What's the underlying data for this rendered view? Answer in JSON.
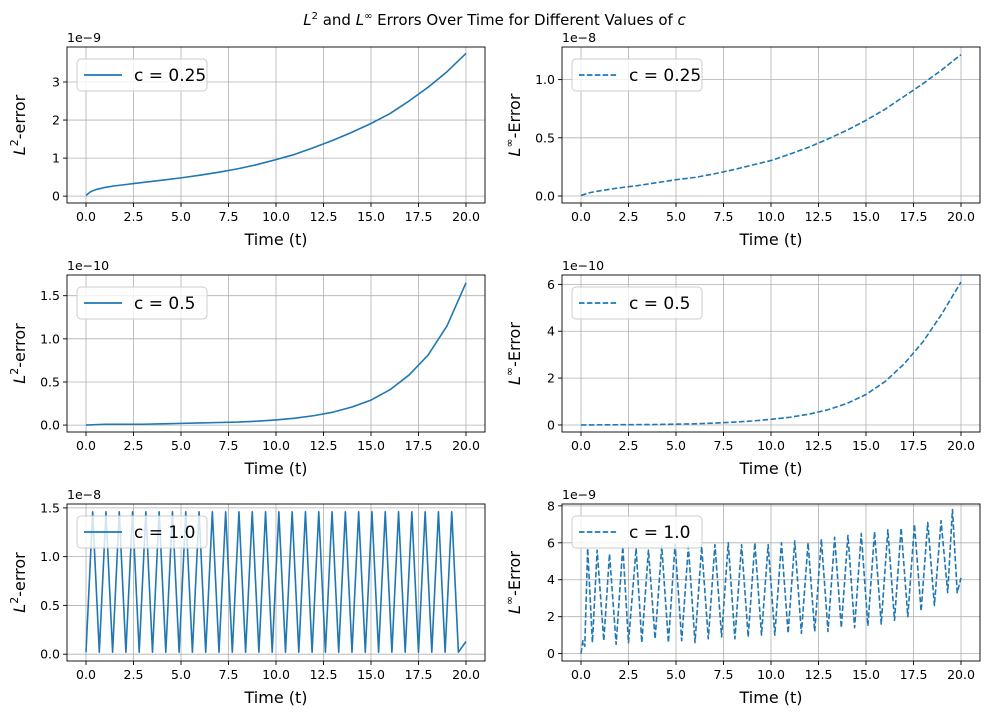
{
  "figure": {
    "title_parts": [
      "L",
      "2",
      " and ",
      "L",
      "∞",
      " Errors Over Time for Different Values of ",
      "c"
    ]
  },
  "colors": {
    "line": "#1f77b4",
    "grid": "#b0b0b0",
    "axis": "#000000",
    "legend_border": "#cccccc"
  },
  "chart_data": [
    {
      "type": "line",
      "panel": "row1-left",
      "xlabel": "Time (t)",
      "ylabel_base": "L",
      "ylabel_sup": "2",
      "ylabel_rest": "-error",
      "offset_text": "1e−9",
      "linestyle": "solid",
      "xlim": [
        -1.0,
        21.0
      ],
      "ylim": [
        -0.18,
        3.92
      ],
      "xticks": [
        0,
        2.5,
        5,
        7.5,
        10,
        12.5,
        15,
        17.5,
        20
      ],
      "xtick_labels": [
        "0.0",
        "2.5",
        "5.0",
        "7.5",
        "10.0",
        "12.5",
        "15.0",
        "17.5",
        "20.0"
      ],
      "yticks": [
        0,
        1,
        2,
        3
      ],
      "ytick_labels": [
        "0",
        "1",
        "2",
        "3"
      ],
      "legend": "upper left",
      "grid": true,
      "series": [
        {
          "name": "c = 0.25",
          "x": [
            0,
            0.25,
            0.5,
            1,
            1.5,
            2,
            2.5,
            3,
            4,
            5,
            6,
            7,
            8,
            9,
            10,
            11,
            12,
            13,
            14,
            15,
            16,
            17,
            18,
            19,
            20
          ],
          "y": [
            0.02,
            0.12,
            0.17,
            0.23,
            0.27,
            0.3,
            0.33,
            0.36,
            0.42,
            0.48,
            0.55,
            0.63,
            0.72,
            0.83,
            0.96,
            1.1,
            1.28,
            1.47,
            1.68,
            1.91,
            2.17,
            2.5,
            2.86,
            3.27,
            3.75
          ]
        }
      ]
    },
    {
      "type": "line",
      "panel": "row1-right",
      "xlabel": "Time (t)",
      "ylabel_base": "L",
      "ylabel_sup": "∞",
      "ylabel_rest": "-Error",
      "offset_text": "1e−8",
      "linestyle": "dashed",
      "xlim": [
        -1.0,
        21.0
      ],
      "ylim": [
        -0.06,
        1.28
      ],
      "xticks": [
        0,
        2.5,
        5,
        7.5,
        10,
        12.5,
        15,
        17.5,
        20
      ],
      "xtick_labels": [
        "0.0",
        "2.5",
        "5.0",
        "7.5",
        "10.0",
        "12.5",
        "15.0",
        "17.5",
        "20.0"
      ],
      "yticks": [
        0,
        0.5,
        1.0
      ],
      "ytick_labels": [
        "0.0",
        "0.5",
        "1.0"
      ],
      "legend": "upper left",
      "grid": true,
      "series": [
        {
          "name": "c = 0.25",
          "x": [
            0,
            0.5,
            1,
            2,
            3,
            4,
            5,
            6,
            7,
            8,
            9,
            10,
            11,
            12,
            13,
            14,
            15,
            16,
            17,
            18,
            19,
            20
          ],
          "y": [
            0.005,
            0.03,
            0.045,
            0.07,
            0.09,
            0.115,
            0.14,
            0.16,
            0.19,
            0.225,
            0.265,
            0.305,
            0.36,
            0.42,
            0.49,
            0.565,
            0.65,
            0.745,
            0.855,
            0.965,
            1.085,
            1.215
          ]
        }
      ]
    },
    {
      "type": "line",
      "panel": "row2-left",
      "xlabel": "Time (t)",
      "ylabel_base": "L",
      "ylabel_sup": "2",
      "ylabel_rest": "-error",
      "offset_text": "1e−10",
      "linestyle": "solid",
      "xlim": [
        -1.0,
        21.0
      ],
      "ylim": [
        -0.08,
        1.74
      ],
      "xticks": [
        0,
        2.5,
        5,
        7.5,
        10,
        12.5,
        15,
        17.5,
        20
      ],
      "xtick_labels": [
        "0.0",
        "2.5",
        "5.0",
        "7.5",
        "10.0",
        "12.5",
        "15.0",
        "17.5",
        "20.0"
      ],
      "yticks": [
        0,
        0.5,
        1.0,
        1.5
      ],
      "ytick_labels": [
        "0.0",
        "0.5",
        "1.0",
        "1.5"
      ],
      "legend": "upper left",
      "grid": true,
      "series": [
        {
          "name": "c = 0.5",
          "x": [
            0,
            1,
            2,
            3,
            4,
            5,
            6,
            7,
            8,
            9,
            10,
            11,
            12,
            13,
            14,
            15,
            16,
            17,
            18,
            19,
            20
          ],
          "y": [
            0.0,
            0.01,
            0.01,
            0.01,
            0.015,
            0.02,
            0.025,
            0.03,
            0.035,
            0.045,
            0.06,
            0.08,
            0.11,
            0.15,
            0.21,
            0.29,
            0.41,
            0.58,
            0.81,
            1.15,
            1.65
          ]
        }
      ]
    },
    {
      "type": "line",
      "panel": "row2-right",
      "xlabel": "Time (t)",
      "ylabel_base": "L",
      "ylabel_sup": "∞",
      "ylabel_rest": "-Error",
      "offset_text": "1e−10",
      "linestyle": "dashed",
      "xlim": [
        -1.0,
        21.0
      ],
      "ylim": [
        -0.3,
        6.4
      ],
      "xticks": [
        0,
        2.5,
        5,
        7.5,
        10,
        12.5,
        15,
        17.5,
        20
      ],
      "xtick_labels": [
        "0.0",
        "2.5",
        "5.0",
        "7.5",
        "10.0",
        "12.5",
        "15.0",
        "17.5",
        "20.0"
      ],
      "yticks": [
        0,
        2,
        4,
        6
      ],
      "ytick_labels": [
        "0",
        "2",
        "4",
        "6"
      ],
      "legend": "upper left",
      "grid": true,
      "series": [
        {
          "name": "c = 0.5",
          "x": [
            0,
            2,
            4,
            6,
            7,
            8,
            9,
            10,
            11,
            12,
            13,
            14,
            15,
            16,
            17,
            18,
            19,
            20
          ],
          "y": [
            0.0,
            0.01,
            0.02,
            0.05,
            0.08,
            0.12,
            0.17,
            0.24,
            0.33,
            0.46,
            0.65,
            0.92,
            1.3,
            1.85,
            2.6,
            3.55,
            4.75,
            6.1
          ]
        }
      ]
    },
    {
      "type": "line",
      "panel": "row3-left",
      "xlabel": "Time (t)",
      "ylabel_base": "L",
      "ylabel_sup": "2",
      "ylabel_rest": "-error",
      "offset_text": "1e−8",
      "linestyle": "solid",
      "xlim": [
        -1.0,
        21.0
      ],
      "ylim": [
        -0.07,
        1.54
      ],
      "xticks": [
        0,
        2.5,
        5,
        7.5,
        10,
        12.5,
        15,
        17.5,
        20
      ],
      "xtick_labels": [
        "0.0",
        "2.5",
        "5.0",
        "7.5",
        "10.0",
        "12.5",
        "15.0",
        "17.5",
        "20.0"
      ],
      "yticks": [
        0,
        0.5,
        1.0,
        1.5
      ],
      "ytick_labels": [
        "0.0",
        "0.5",
        "1.0",
        "1.5"
      ],
      "legend": "upper left",
      "grid": true,
      "series": [
        {
          "name": "c = 1.0",
          "x": [
            0,
            0.35,
            0.7,
            1.05,
            1.4,
            1.75,
            2.1,
            2.45,
            2.8,
            3.15,
            3.5,
            3.85,
            4.2,
            4.55,
            4.9,
            5.25,
            5.6,
            5.95,
            6.3,
            6.65,
            7.0,
            7.35,
            7.7,
            8.05,
            8.4,
            8.75,
            9.1,
            9.45,
            9.8,
            10.15,
            10.5,
            10.85,
            11.2,
            11.55,
            11.9,
            12.25,
            12.6,
            12.95,
            13.3,
            13.65,
            14.0,
            14.35,
            14.7,
            15.05,
            15.4,
            15.75,
            16.1,
            16.45,
            16.8,
            17.15,
            17.5,
            17.85,
            18.2,
            18.55,
            18.9,
            19.25,
            19.6,
            20.0
          ],
          "y": [
            0.02,
            1.46,
            0.02,
            1.46,
            0.02,
            1.46,
            0.02,
            1.46,
            0.02,
            1.46,
            0.02,
            1.46,
            0.02,
            1.46,
            0.02,
            1.46,
            0.02,
            1.46,
            0.02,
            1.46,
            0.02,
            1.46,
            0.02,
            1.46,
            0.02,
            1.46,
            0.02,
            1.46,
            0.02,
            1.46,
            0.02,
            1.46,
            0.02,
            1.46,
            0.02,
            1.46,
            0.02,
            1.46,
            0.02,
            1.46,
            0.02,
            1.46,
            0.02,
            1.46,
            0.02,
            1.46,
            0.02,
            1.46,
            0.02,
            1.46,
            0.02,
            1.46,
            0.02,
            1.46,
            0.02,
            1.46,
            0.02,
            0.13
          ]
        }
      ]
    },
    {
      "type": "line",
      "panel": "row3-right",
      "xlabel": "Time (t)",
      "ylabel_base": "L",
      "ylabel_sup": "∞",
      "ylabel_rest": "-Error",
      "offset_text": "1e−9",
      "linestyle": "dashed",
      "xlim": [
        -1.0,
        21.0
      ],
      "ylim": [
        -0.4,
        8.1
      ],
      "xticks": [
        0,
        2.5,
        5,
        7.5,
        10,
        12.5,
        15,
        17.5,
        20
      ],
      "xtick_labels": [
        "0.0",
        "2.5",
        "5.0",
        "7.5",
        "10.0",
        "12.5",
        "15.0",
        "17.5",
        "20.0"
      ],
      "yticks": [
        0,
        2,
        4,
        6,
        8
      ],
      "ytick_labels": [
        "0",
        "2",
        "4",
        "6",
        "8"
      ],
      "legend": "upper left",
      "grid": true,
      "series": [
        {
          "name": "c = 1.0",
          "x": [
            0,
            0.1,
            0.2,
            0.35,
            0.6,
            0.85,
            1.2,
            1.5,
            1.85,
            2.2,
            2.5,
            2.9,
            3.2,
            3.55,
            3.9,
            4.25,
            4.6,
            4.95,
            5.3,
            5.65,
            6.0,
            6.35,
            6.7,
            7.05,
            7.4,
            7.75,
            8.1,
            8.45,
            8.8,
            9.15,
            9.5,
            9.85,
            10.2,
            10.55,
            10.9,
            11.25,
            11.6,
            11.95,
            12.3,
            12.65,
            13.0,
            13.35,
            13.7,
            14.05,
            14.4,
            14.75,
            15.1,
            15.45,
            15.8,
            16.15,
            16.5,
            16.85,
            17.2,
            17.55,
            17.9,
            18.25,
            18.6,
            18.95,
            19.3,
            19.55,
            19.8,
            20.0
          ],
          "y": [
            0.0,
            0.7,
            0.4,
            5.7,
            0.6,
            5.6,
            0.7,
            5.4,
            0.5,
            5.8,
            0.6,
            5.7,
            0.6,
            5.6,
            0.8,
            5.8,
            0.6,
            5.9,
            0.7,
            5.8,
            0.6,
            5.8,
            0.8,
            5.9,
            0.9,
            6.0,
            0.8,
            5.9,
            0.9,
            6.0,
            1.0,
            5.9,
            1.0,
            6.0,
            1.1,
            6.1,
            1.1,
            6.0,
            1.2,
            6.2,
            1.2,
            6.3,
            1.4,
            6.4,
            1.4,
            6.5,
            1.5,
            6.6,
            1.6,
            6.7,
            1.8,
            6.8,
            2.0,
            7.0,
            2.3,
            7.1,
            2.6,
            7.2,
            3.3,
            7.8,
            3.3,
            4.1
          ]
        }
      ]
    }
  ]
}
